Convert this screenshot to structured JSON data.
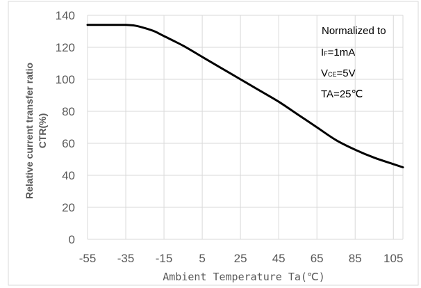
{
  "chart_data": {
    "type": "line",
    "title": "",
    "xlabel": "Ambient Temperature Ta(℃)",
    "ylabel_line1": "Relative current transfer ratio",
    "ylabel_line2": "CTR(%)",
    "xlim": [
      -55,
      110
    ],
    "ylim": [
      0,
      140
    ],
    "x_ticks": [
      "-55",
      "-35",
      "-15",
      "5",
      "25",
      "45",
      "65",
      "85",
      "105"
    ],
    "y_ticks": [
      "0",
      "20",
      "40",
      "60",
      "80",
      "100",
      "120",
      "140"
    ],
    "grid": true,
    "series": [
      {
        "x": [
          -55,
          -40,
          -35,
          -30,
          -25,
          -20,
          -15,
          -5,
          5,
          15,
          25,
          35,
          45,
          55,
          65,
          75,
          85,
          95,
          105,
          110
        ],
        "y": [
          134,
          134,
          134,
          133.5,
          132,
          130,
          127,
          121,
          114,
          107,
          100,
          93,
          86,
          78,
          70,
          62,
          56,
          51,
          47,
          45
        ]
      }
    ],
    "annotations": {
      "line1": "Normalized to",
      "line2_main": "I",
      "line2_sub": "F",
      "line2_rest": "=1mA",
      "line3_main": "V",
      "line3_sub": "CE",
      "line3_rest": "=5V",
      "line4": "TA=25℃"
    },
    "line_color": "#000000",
    "grid_color": "#d9d9d9"
  }
}
